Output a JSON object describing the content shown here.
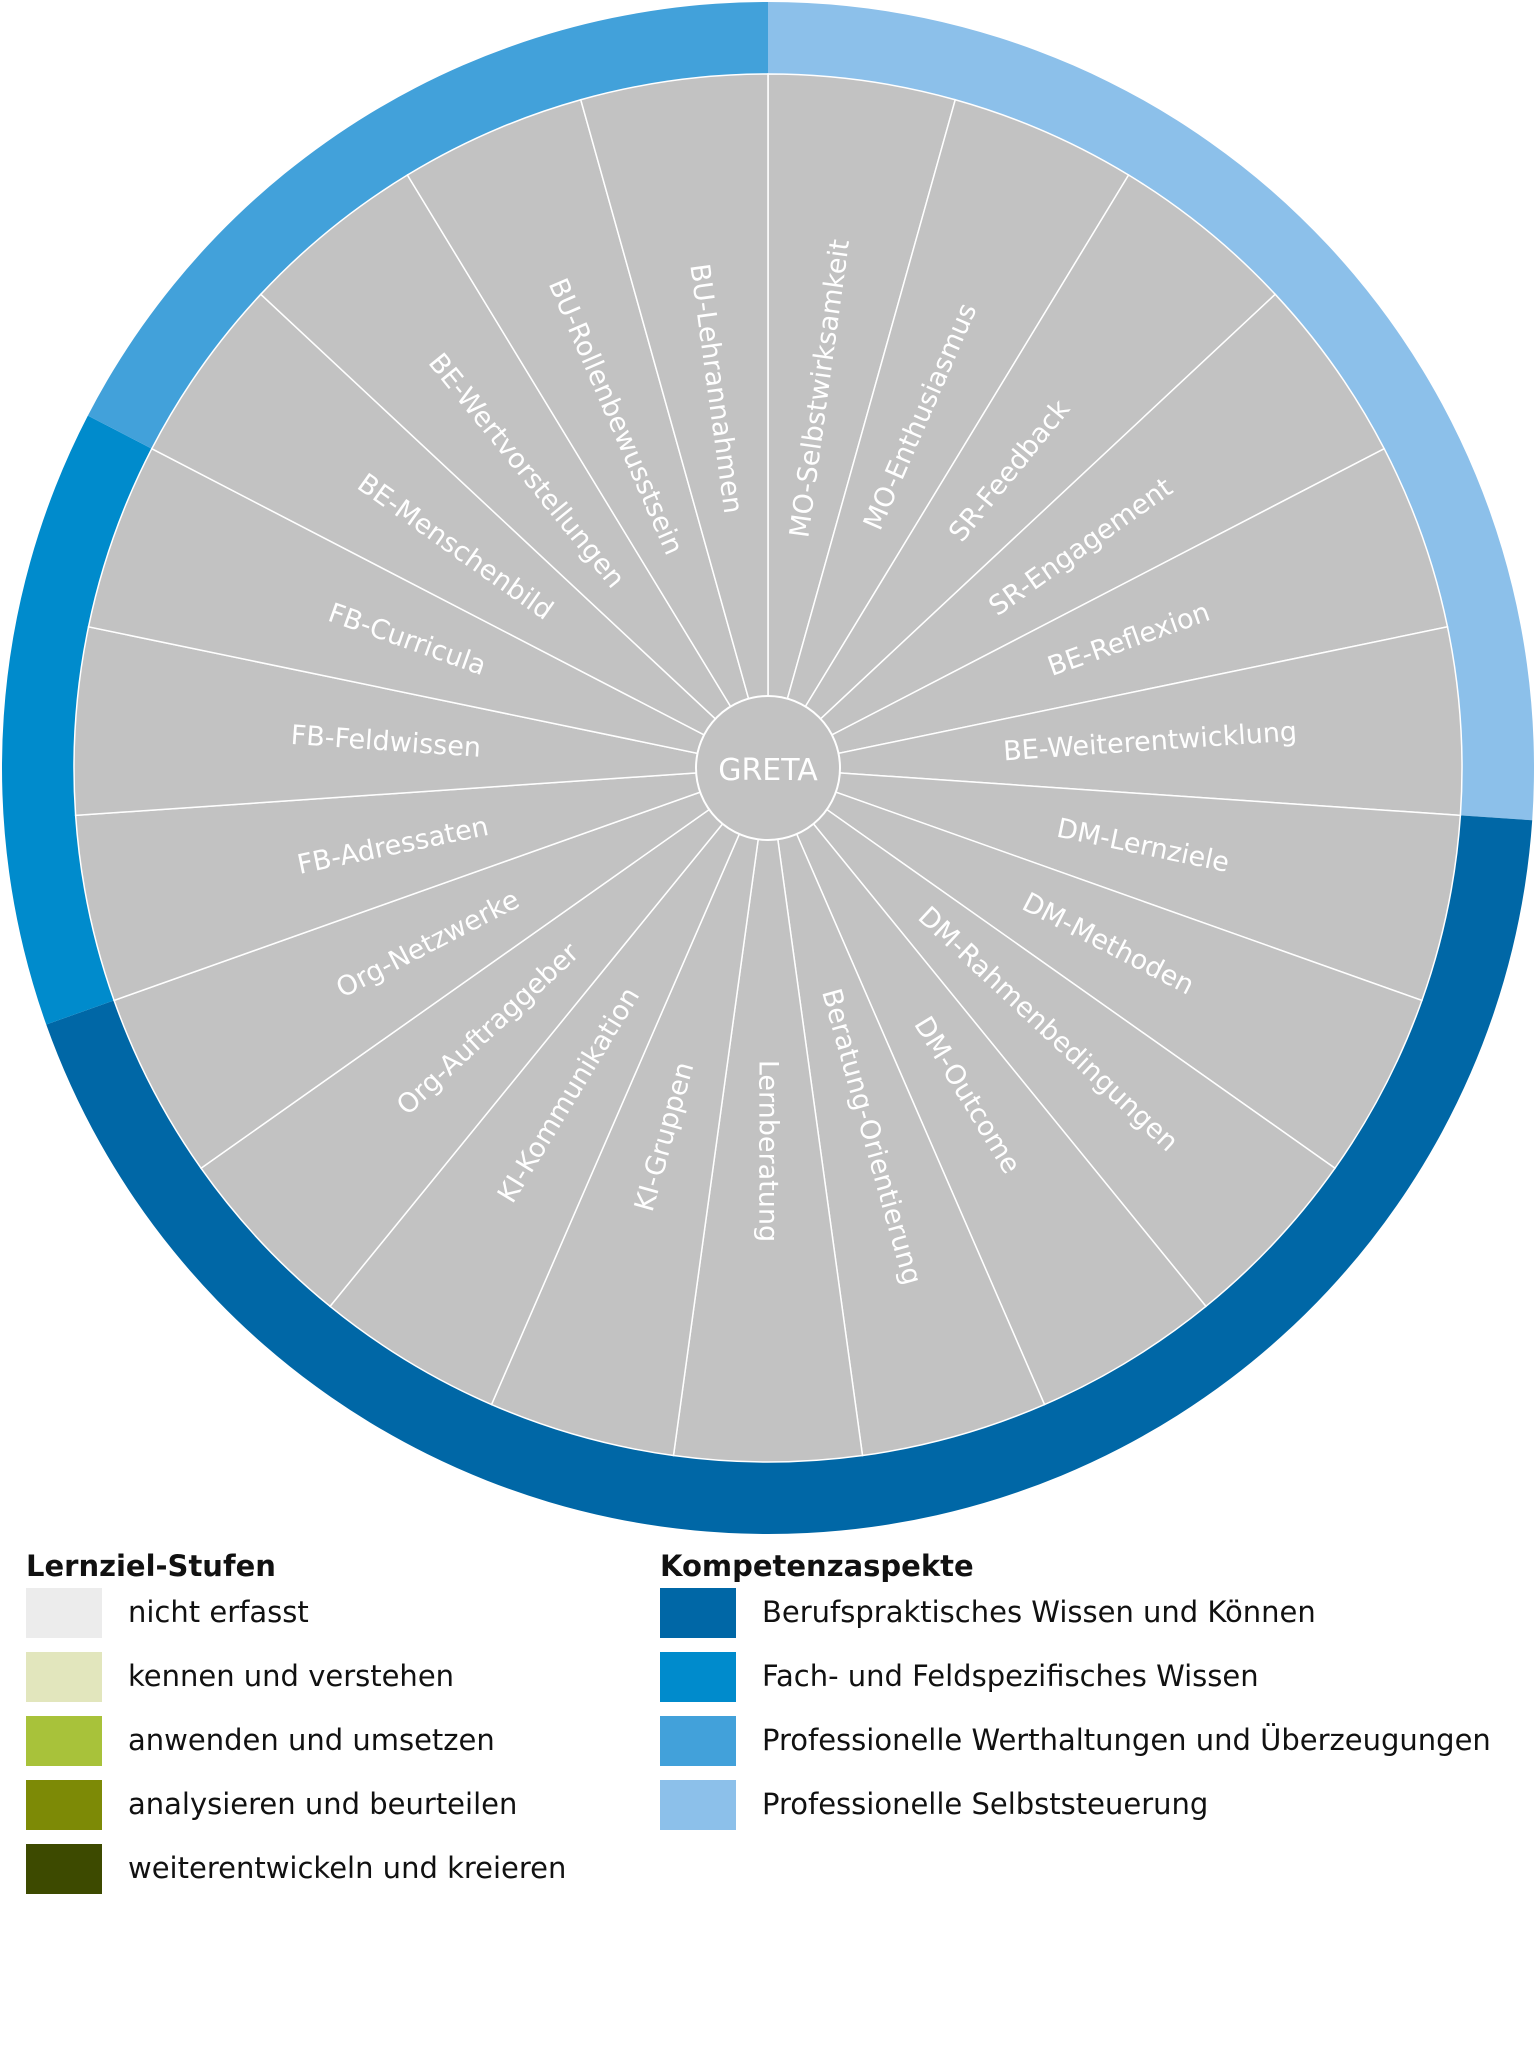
{
  "center_label": "GRETA",
  "segments": [
    {
      "label": "MO-Selbstwirksamkeit",
      "aspect": "selbststeuerung"
    },
    {
      "label": "MO-Enthusiasmus",
      "aspect": "selbststeuerung"
    },
    {
      "label": "SR-Feedback",
      "aspect": "selbststeuerung"
    },
    {
      "label": "SR-Engagement",
      "aspect": "selbststeuerung"
    },
    {
      "label": "BE-Reflexion",
      "aspect": "selbststeuerung"
    },
    {
      "label": "BE-Weiterentwicklung",
      "aspect": "selbststeuerung"
    },
    {
      "label": "DM-Lernziele",
      "aspect": "berufspraktisch"
    },
    {
      "label": "DM-Methoden",
      "aspect": "berufspraktisch"
    },
    {
      "label": "DM-Rahmenbedingungen",
      "aspect": "berufspraktisch"
    },
    {
      "label": "DM-Outcome",
      "aspect": "berufspraktisch"
    },
    {
      "label": "Beratung-Orientierung",
      "aspect": "berufspraktisch"
    },
    {
      "label": "Lernberatung",
      "aspect": "berufspraktisch"
    },
    {
      "label": "KI-Gruppen",
      "aspect": "berufspraktisch"
    },
    {
      "label": "KI-Kommunikation",
      "aspect": "berufspraktisch"
    },
    {
      "label": "Org-Auftraggeber",
      "aspect": "berufspraktisch"
    },
    {
      "label": "Org-Netzwerke",
      "aspect": "berufspraktisch"
    },
    {
      "label": "FB-Adressaten",
      "aspect": "fachspezifisch"
    },
    {
      "label": "FB-Feldwissen",
      "aspect": "fachspezifisch"
    },
    {
      "label": "FB-Curricula",
      "aspect": "fachspezifisch"
    },
    {
      "label": "BE-Menschenbild",
      "aspect": "werthaltungen"
    },
    {
      "label": "BE-Wertvorstellungen",
      "aspect": "werthaltungen"
    },
    {
      "label": "BU-Rollenbewusstsein",
      "aspect": "werthaltungen"
    },
    {
      "label": "BU-Lehrannahmen",
      "aspect": "werthaltungen"
    }
  ],
  "aspect_colors": {
    "berufspraktisch": "#0067a6",
    "fachspezifisch": "#008bcc",
    "werthaltungen": "#42a1da",
    "selbststeuerung": "#8cc0ea"
  },
  "segment_fill": "#c2c2c2",
  "legend_levels": {
    "title": "Lernziel-Stufen",
    "items": [
      {
        "label": "nicht erfasst",
        "color": "#ececec"
      },
      {
        "label": "kennen und verstehen",
        "color": "#e2e6bd"
      },
      {
        "label": "anwenden und umsetzen",
        "color": "#a8c23a"
      },
      {
        "label": "analysieren und beurteilen",
        "color": "#7d8a06"
      },
      {
        "label": "weiterentwickeln und kreieren",
        "color": "#3d4a00"
      }
    ]
  },
  "legend_aspects": {
    "title": "Kompetenzaspekte",
    "items": [
      {
        "label": "Berufspraktisches Wissen und Können",
        "color": "#0067a6"
      },
      {
        "label": "Fach- und Feldspezifisches Wissen",
        "color": "#008bcc"
      },
      {
        "label": "Professionelle Werthaltungen und Überzeugungen",
        "color": "#42a1da"
      },
      {
        "label": "Professionelle Selbststeuerung",
        "color": "#8cc0ea"
      }
    ]
  }
}
